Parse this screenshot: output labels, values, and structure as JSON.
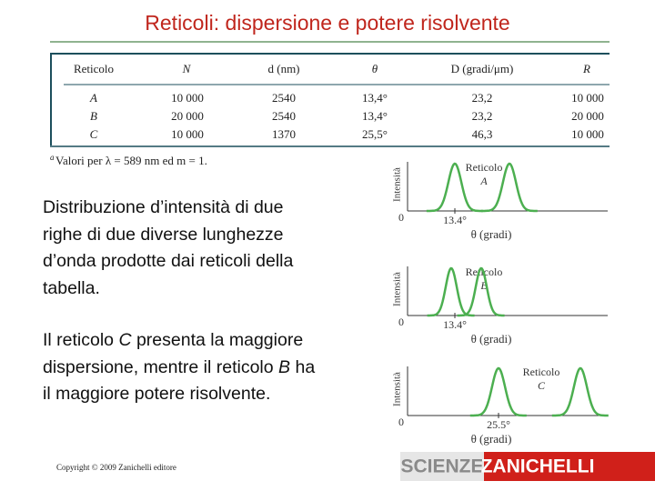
{
  "header": {
    "title": "Reticoli: dispersione e potere risolvente"
  },
  "table": {
    "columns": [
      "Reticolo",
      "N",
      "d (nm)",
      "θ",
      "D (gradi/μm)",
      "R"
    ],
    "rows": [
      [
        "A",
        "10 000",
        "2540",
        "13,4°",
        "23,2",
        "10 000"
      ],
      [
        "B",
        "20 000",
        "2540",
        "13,4°",
        "23,2",
        "20 000"
      ],
      [
        "C",
        "10 000",
        "1370",
        "25,5°",
        "46,3",
        "10 000"
      ]
    ],
    "footnote_mark": "a",
    "footnote": "Valori per λ = 589 nm ed m = 1."
  },
  "text": {
    "paragraphs": [
      [
        "Distribuzione d’intensità di due righe di due diverse lunghezze d’onda prodotte dai reticoli della tabella."
      ],
      [
        "Il reticolo ",
        "C",
        " presenta la maggiore dispersione, mentre il reticolo ",
        "B",
        " ha il maggiore potere risolvente."
      ]
    ]
  },
  "diagrams": [
    {
      "y_label": "Intensità",
      "origin": "0",
      "angle": "13.4°",
      "x_label": "θ (gradi)",
      "grating_label": "Reticolo",
      "grating": "A"
    },
    {
      "y_label": "Intensità",
      "origin": "0",
      "angle": "13.4°",
      "x_label": "θ (gradi)",
      "grating_label": "Reticolo",
      "grating": "B"
    },
    {
      "y_label": "Intensità",
      "origin": "0",
      "angle": "25.5°",
      "x_label": "θ (gradi)",
      "grating_label": "Reticolo",
      "grating": "C"
    }
  ],
  "footer": {
    "copyright": "Copyright © 2009 Zanichelli editore",
    "logo_left": "SCIENZE",
    "logo_right": "ZANICHELLI"
  }
}
